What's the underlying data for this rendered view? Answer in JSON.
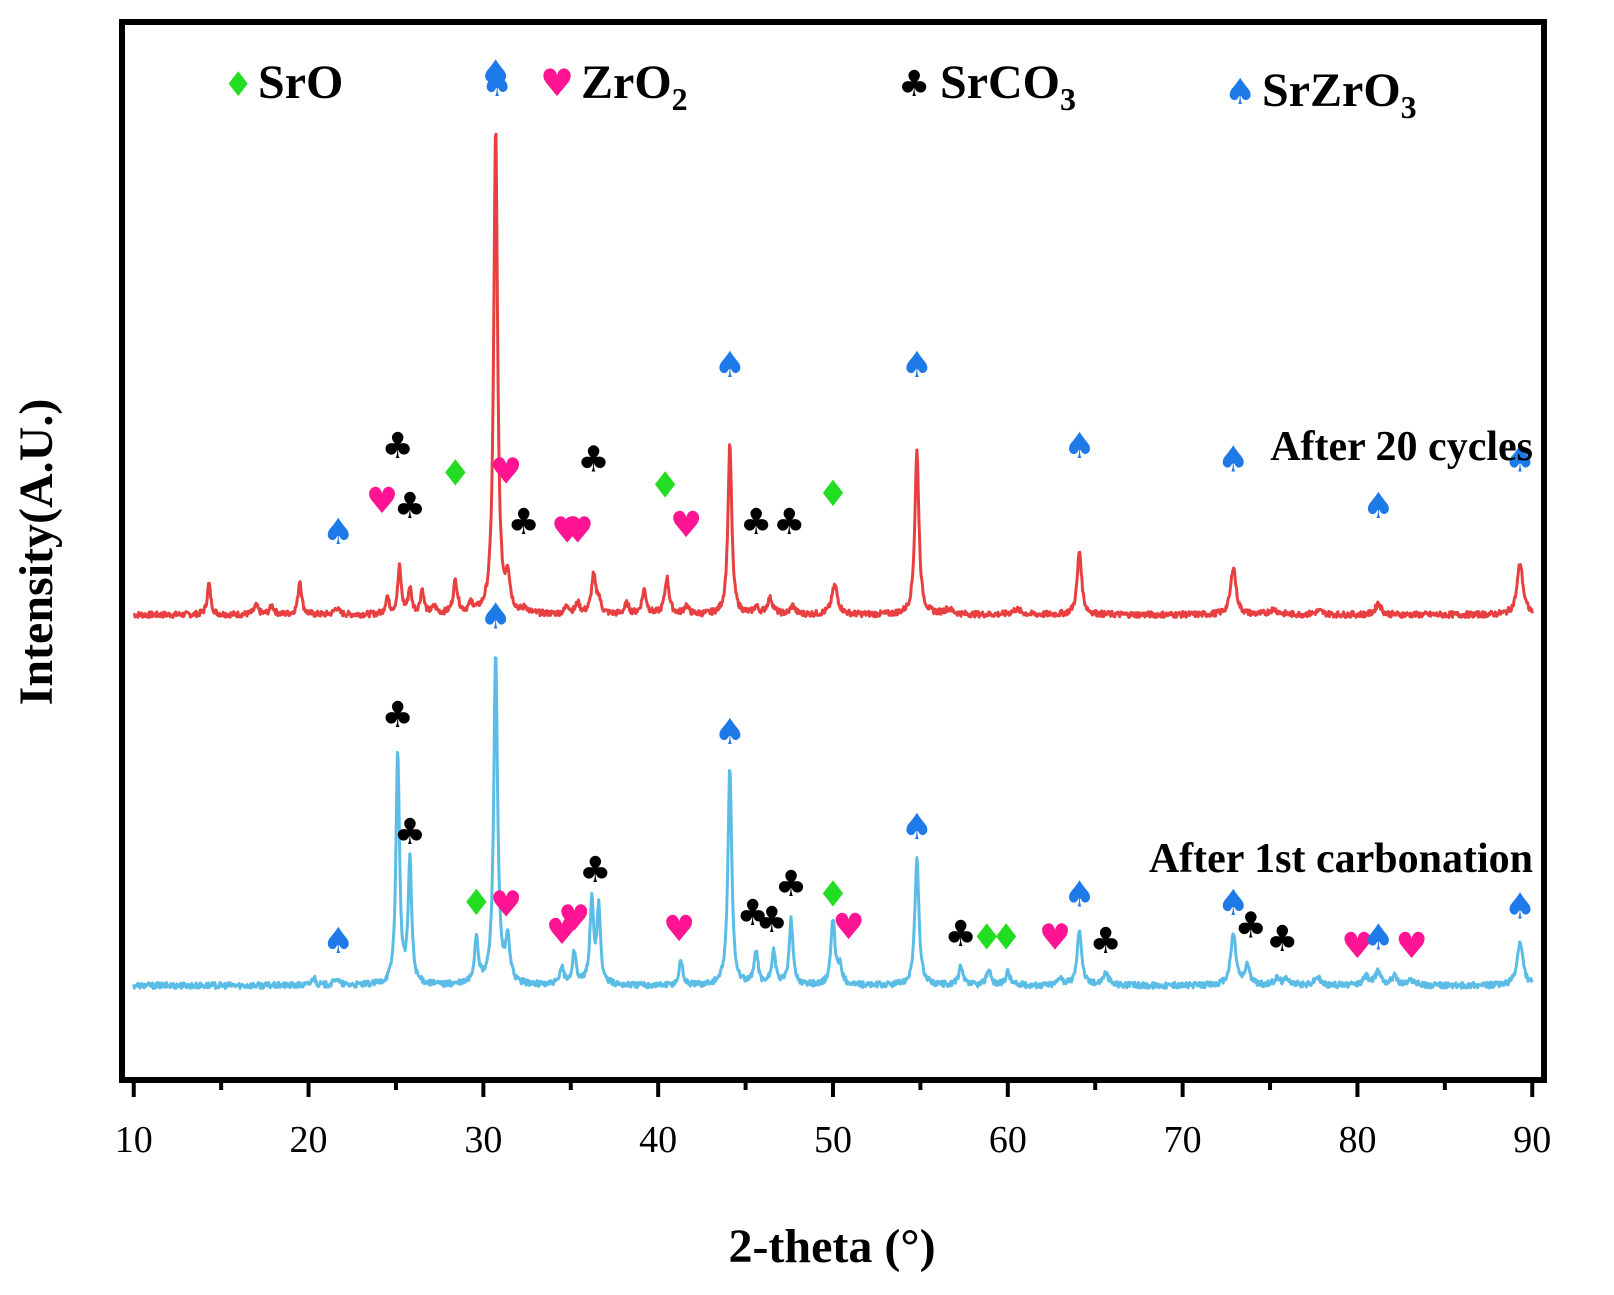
{
  "chart_data": {
    "type": "line",
    "xlabel": "2-theta (°)",
    "ylabel": "Intensity(A.U.)",
    "xlim": [
      9.5,
      90.5
    ],
    "x_ticks": [
      10,
      20,
      30,
      40,
      50,
      60,
      70,
      80,
      90
    ],
    "y_ticks_labeled": false,
    "grid": false,
    "legend": {
      "placement": "top",
      "entries": [
        {
          "symbol": "diamond",
          "glyph": "♦",
          "color": "#22dd22",
          "label": "SrO",
          "sub": ""
        },
        {
          "symbol": "heart",
          "glyph": "♥",
          "color": "#ff1493",
          "label": "ZrO",
          "sub": "2"
        },
        {
          "symbol": "club",
          "glyph": "♣",
          "color": "#000000",
          "label": "SrCO",
          "sub": "3"
        },
        {
          "symbol": "spade",
          "glyph": "♠",
          "color": "#1e7ae8",
          "label": "SrZrO",
          "sub": "3"
        }
      ],
      "extra_spade_color": "#1e7ae8"
    },
    "series": [
      {
        "name": "After 20 cycles",
        "color": "#e84040",
        "baseline": 2.15,
        "peaks": [
          [
            14.3,
            0.18,
            0.12
          ],
          [
            17.0,
            0.05,
            0.15
          ],
          [
            17.9,
            0.05,
            0.15
          ],
          [
            19.5,
            0.2,
            0.12
          ],
          [
            21.6,
            0.04,
            0.15
          ],
          [
            24.5,
            0.1,
            0.12
          ],
          [
            25.2,
            0.27,
            0.12
          ],
          [
            25.8,
            0.15,
            0.12
          ],
          [
            26.5,
            0.14,
            0.12
          ],
          [
            27.2,
            0.04,
            0.15
          ],
          [
            28.4,
            0.19,
            0.15
          ],
          [
            29.3,
            0.05,
            0.15
          ],
          [
            30.7,
            2.83,
            0.13
          ],
          [
            31.4,
            0.2,
            0.15
          ],
          [
            32.4,
            0.03,
            0.15
          ],
          [
            34.8,
            0.05,
            0.15
          ],
          [
            35.4,
            0.06,
            0.15
          ],
          [
            36.3,
            0.22,
            0.15
          ],
          [
            36.6,
            0.08,
            0.13
          ],
          [
            38.2,
            0.06,
            0.15
          ],
          [
            39.2,
            0.14,
            0.15
          ],
          [
            40.5,
            0.21,
            0.15
          ],
          [
            41.6,
            0.05,
            0.15
          ],
          [
            44.1,
            0.99,
            0.13
          ],
          [
            45.6,
            0.04,
            0.15
          ],
          [
            46.4,
            0.09,
            0.2
          ],
          [
            47.7,
            0.05,
            0.15
          ],
          [
            50.1,
            0.17,
            0.2
          ],
          [
            54.8,
            0.95,
            0.14
          ],
          [
            56.6,
            0.03,
            0.3
          ],
          [
            60.5,
            0.03,
            0.3
          ],
          [
            64.1,
            0.37,
            0.15
          ],
          [
            72.9,
            0.28,
            0.18
          ],
          [
            75.2,
            0.03,
            0.3
          ],
          [
            77.8,
            0.02,
            0.3
          ],
          [
            81.2,
            0.07,
            0.18
          ],
          [
            89.3,
            0.3,
            0.2
          ]
        ]
      },
      {
        "name": "After 1st carbonation",
        "color": "#5bbde6",
        "baseline": 0.0,
        "peaks": [
          [
            20.3,
            0.05,
            0.12
          ],
          [
            21.6,
            0.04,
            0.15
          ],
          [
            25.1,
            1.35,
            0.12
          ],
          [
            25.8,
            0.72,
            0.12
          ],
          [
            29.6,
            0.27,
            0.13
          ],
          [
            30.7,
            1.93,
            0.13
          ],
          [
            31.4,
            0.25,
            0.15
          ],
          [
            34.5,
            0.1,
            0.13
          ],
          [
            35.2,
            0.19,
            0.13
          ],
          [
            36.2,
            0.48,
            0.13
          ],
          [
            36.6,
            0.44,
            0.12
          ],
          [
            41.3,
            0.15,
            0.12
          ],
          [
            44.1,
            1.27,
            0.13
          ],
          [
            45.6,
            0.2,
            0.13
          ],
          [
            46.6,
            0.2,
            0.13
          ],
          [
            47.6,
            0.38,
            0.13
          ],
          [
            50.0,
            0.37,
            0.14
          ],
          [
            50.4,
            0.1,
            0.15
          ],
          [
            54.8,
            0.73,
            0.14
          ],
          [
            57.3,
            0.1,
            0.15
          ],
          [
            58.9,
            0.09,
            0.15
          ],
          [
            60.0,
            0.08,
            0.15
          ],
          [
            63.0,
            0.05,
            0.15
          ],
          [
            64.1,
            0.33,
            0.15
          ],
          [
            65.6,
            0.07,
            0.2
          ],
          [
            72.9,
            0.3,
            0.18
          ],
          [
            73.7,
            0.12,
            0.15
          ],
          [
            75.4,
            0.04,
            0.2
          ],
          [
            76.0,
            0.04,
            0.2
          ],
          [
            77.7,
            0.05,
            0.2
          ],
          [
            80.5,
            0.05,
            0.2
          ],
          [
            81.2,
            0.08,
            0.2
          ],
          [
            82.1,
            0.05,
            0.2
          ],
          [
            83.1,
            0.03,
            0.25
          ],
          [
            89.3,
            0.25,
            0.2
          ]
        ]
      }
    ],
    "annotations": [
      {
        "text": "After 20 cycles"
      },
      {
        "text": "After 1st carbonation"
      }
    ],
    "markers": [
      {
        "phase": "SrZrO3",
        "glyph": "♠",
        "x": 21.7,
        "y": 2.56
      },
      {
        "phase": "ZrO2",
        "glyph": "♥",
        "x": 24.2,
        "y": 2.74
      },
      {
        "phase": "SrCO3",
        "glyph": "♣",
        "x": 25.1,
        "y": 3.06
      },
      {
        "phase": "SrCO3",
        "glyph": "♣",
        "x": 25.8,
        "y": 2.71
      },
      {
        "phase": "SrO",
        "glyph": "♦",
        "x": 28.4,
        "y": 2.9
      },
      {
        "phase": "SrZrO3",
        "glyph": "♠",
        "x": 30.7,
        "y": 5.22
      },
      {
        "phase": "ZrO2",
        "glyph": "♥",
        "x": 31.3,
        "y": 2.91
      },
      {
        "phase": "SrCO3",
        "glyph": "♣",
        "x": 32.3,
        "y": 2.62
      },
      {
        "phase": "ZrO2",
        "glyph": "♥",
        "x": 34.8,
        "y": 2.57
      },
      {
        "phase": "ZrO2",
        "glyph": "♥",
        "x": 35.4,
        "y": 2.57
      },
      {
        "phase": "SrCO3",
        "glyph": "♣",
        "x": 36.3,
        "y": 2.98
      },
      {
        "phase": "SrO",
        "glyph": "♦",
        "x": 40.4,
        "y": 2.83
      },
      {
        "phase": "ZrO2",
        "glyph": "♥",
        "x": 41.6,
        "y": 2.6
      },
      {
        "phase": "SrZrO3",
        "glyph": "♠",
        "x": 44.1,
        "y": 3.53
      },
      {
        "phase": "SrCO3",
        "glyph": "♣",
        "x": 45.6,
        "y": 2.62
      },
      {
        "phase": "SrCO3",
        "glyph": "♣",
        "x": 47.5,
        "y": 2.62
      },
      {
        "phase": "SrO",
        "glyph": "♦",
        "x": 50.0,
        "y": 2.78
      },
      {
        "phase": "SrZrO3",
        "glyph": "♠",
        "x": 54.8,
        "y": 3.53
      },
      {
        "phase": "SrZrO3",
        "glyph": "♠",
        "x": 64.1,
        "y": 3.06
      },
      {
        "phase": "SrZrO3",
        "glyph": "♠",
        "x": 72.9,
        "y": 2.98
      },
      {
        "phase": "SrZrO3",
        "glyph": "♠",
        "x": 81.2,
        "y": 2.71
      },
      {
        "phase": "SrZrO3",
        "glyph": "♠",
        "x": 89.3,
        "y": 2.98
      },
      {
        "phase": "SrZrO3",
        "glyph": "♠",
        "x": 21.7,
        "y": 0.19
      },
      {
        "phase": "SrCO3",
        "glyph": "♣",
        "x": 25.1,
        "y": 1.5
      },
      {
        "phase": "SrCO3",
        "glyph": "♣",
        "x": 25.8,
        "y": 0.82
      },
      {
        "phase": "SrO",
        "glyph": "♦",
        "x": 29.6,
        "y": 0.41
      },
      {
        "phase": "SrZrO3",
        "glyph": "♠",
        "x": 30.7,
        "y": 2.07
      },
      {
        "phase": "ZrO2",
        "glyph": "♥",
        "x": 31.3,
        "y": 0.4
      },
      {
        "phase": "ZrO2",
        "glyph": "♥",
        "x": 34.5,
        "y": 0.24
      },
      {
        "phase": "ZrO2",
        "glyph": "♥",
        "x": 35.2,
        "y": 0.32
      },
      {
        "phase": "SrCO3",
        "glyph": "♣",
        "x": 36.4,
        "y": 0.6
      },
      {
        "phase": "ZrO2",
        "glyph": "♥",
        "x": 41.2,
        "y": 0.26
      },
      {
        "phase": "SrZrO3",
        "glyph": "♠",
        "x": 44.1,
        "y": 1.4
      },
      {
        "phase": "SrCO3",
        "glyph": "♣",
        "x": 45.4,
        "y": 0.35
      },
      {
        "phase": "SrCO3",
        "glyph": "♣",
        "x": 46.5,
        "y": 0.31
      },
      {
        "phase": "SrCO3",
        "glyph": "♣",
        "x": 47.6,
        "y": 0.52
      },
      {
        "phase": "SrO",
        "glyph": "♦",
        "x": 50.0,
        "y": 0.46
      },
      {
        "phase": "ZrO2",
        "glyph": "♥",
        "x": 50.9,
        "y": 0.27
      },
      {
        "phase": "SrZrO3",
        "glyph": "♠",
        "x": 54.8,
        "y": 0.85
      },
      {
        "phase": "SrCO3",
        "glyph": "♣",
        "x": 57.3,
        "y": 0.23
      },
      {
        "phase": "SrO",
        "glyph": "♦",
        "x": 58.8,
        "y": 0.21
      },
      {
        "phase": "SrO",
        "glyph": "♦",
        "x": 59.9,
        "y": 0.21
      },
      {
        "phase": "ZrO2",
        "glyph": "♥",
        "x": 62.7,
        "y": 0.21
      },
      {
        "phase": "SrZrO3",
        "glyph": "♠",
        "x": 64.1,
        "y": 0.46
      },
      {
        "phase": "SrCO3",
        "glyph": "♣",
        "x": 65.6,
        "y": 0.19
      },
      {
        "phase": "SrZrO3",
        "glyph": "♠",
        "x": 72.9,
        "y": 0.41
      },
      {
        "phase": "SrCO3",
        "glyph": "♣",
        "x": 73.9,
        "y": 0.28
      },
      {
        "phase": "SrCO3",
        "glyph": "♣",
        "x": 75.7,
        "y": 0.2
      },
      {
        "phase": "ZrO2",
        "glyph": "♥",
        "x": 80.0,
        "y": 0.16
      },
      {
        "phase": "SrZrO3",
        "glyph": "♠",
        "x": 81.2,
        "y": 0.21
      },
      {
        "phase": "ZrO2",
        "glyph": "♥",
        "x": 83.1,
        "y": 0.16
      },
      {
        "phase": "SrZrO3",
        "glyph": "♠",
        "x": 89.3,
        "y": 0.39
      }
    ],
    "ylim": [
      -0.53,
      5.57
    ]
  }
}
